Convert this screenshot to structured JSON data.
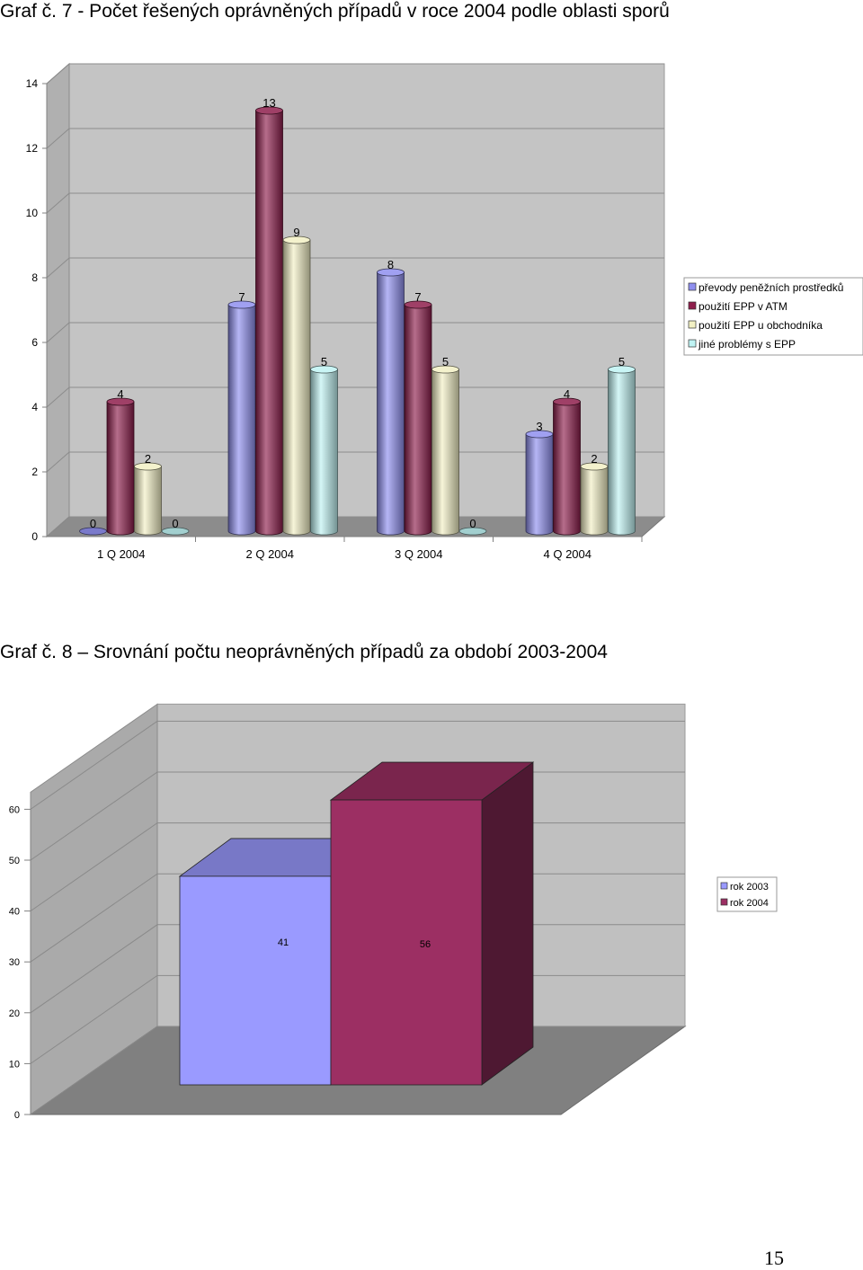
{
  "charts": [
    {
      "heading": "Graf č. 7  - Počet řešených oprávněných případů v roce 2004 podle oblasti sporů"
    },
    {
      "heading": "Graf č. 8 – Srovnání počtu neoprávněných případů za období 2003-2004"
    }
  ],
  "page_number": "15",
  "chart_data": [
    {
      "type": "bar",
      "categories": [
        "1 Q 2004",
        "2 Q 2004",
        "3 Q 2004",
        "4 Q 2004"
      ],
      "series": [
        {
          "name": "převody peněžních prostředků",
          "values": [
            0,
            7,
            8,
            3
          ],
          "color": "#8f8fef"
        },
        {
          "name": "použití EPP v ATM",
          "values": [
            4,
            13,
            7,
            4
          ],
          "color": "#8e1e4c"
        },
        {
          "name": "použití EPP u obchodníka",
          "values": [
            2,
            9,
            5,
            2
          ],
          "color": "#f2f0c4"
        },
        {
          "name": "jiné problémy s EPP",
          "values": [
            0,
            5,
            0,
            5
          ],
          "color": "#bff3f3"
        }
      ],
      "ylim": [
        0,
        14
      ],
      "yticks": [
        "0",
        "2",
        "4",
        "6",
        "8",
        "10",
        "12",
        "14"
      ],
      "data_labels": true,
      "grid": true,
      "legend": "right",
      "style": "3d-cylinder"
    },
    {
      "type": "bar",
      "categories": [
        ""
      ],
      "series": [
        {
          "name": "rok 2003",
          "values": [
            41
          ],
          "color": "#9a9aff"
        },
        {
          "name": "rok 2004",
          "values": [
            56
          ],
          "color": "#9c2f63"
        }
      ],
      "ylim": [
        0,
        60
      ],
      "yticks": [
        "0",
        "10",
        "20",
        "30",
        "40",
        "50",
        "60"
      ],
      "data_labels": true,
      "grid": true,
      "legend": "right",
      "style": "3d-box"
    }
  ]
}
